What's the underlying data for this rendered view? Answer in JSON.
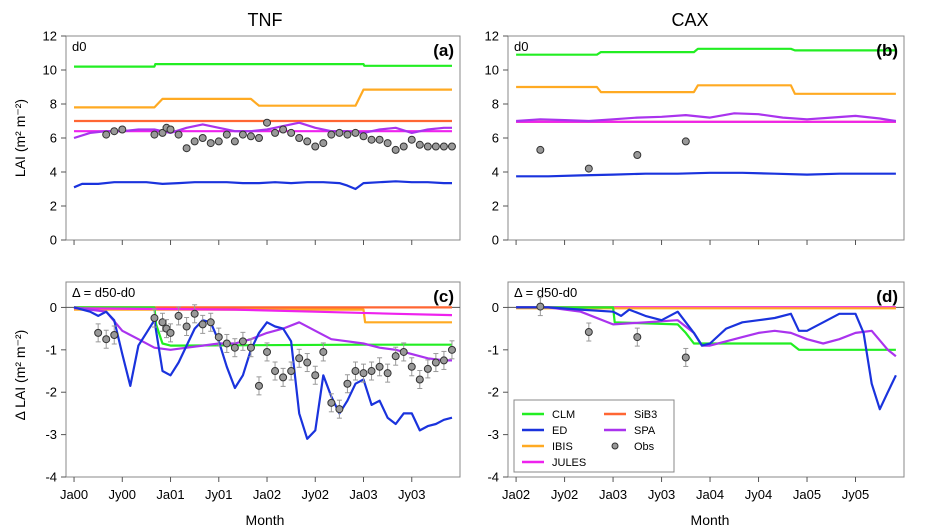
{
  "figure": {
    "columns": [
      "TNF",
      "CAX"
    ],
    "x_title": "Month",
    "y_title_top": "LAI (m² m⁻²)",
    "y_title_bottom": "Δ LAI (m² m⁻²)"
  },
  "legend": {
    "items": [
      {
        "label": "CLM",
        "color": "#22ee22",
        "kind": "line"
      },
      {
        "label": "SiB3",
        "color": "#ff6633",
        "kind": "line"
      },
      {
        "label": "ED",
        "color": "#1a33dd",
        "kind": "line"
      },
      {
        "label": "SPA",
        "color": "#aa33ee",
        "kind": "line"
      },
      {
        "label": "IBIS",
        "color": "#ffaa22",
        "kind": "line"
      },
      {
        "label": "Obs",
        "color": "#888888",
        "kind": "point"
      },
      {
        "label": "JULES",
        "color": "#ee22ee",
        "kind": "line"
      }
    ]
  },
  "chart_data": [
    {
      "type": "line",
      "panel": "(a)",
      "corner_label": "d0",
      "x_ticks": [
        "Ja00",
        "Jy00",
        "Ja01",
        "Jy01",
        "Ja02",
        "Jy02",
        "Ja03",
        "Jy03"
      ],
      "x_tick_pos": [
        0,
        6,
        12,
        18,
        24,
        30,
        36,
        42
      ],
      "xlim": [
        -1,
        48
      ],
      "ylim": [
        0,
        12
      ],
      "y_ticks": [
        0,
        2,
        4,
        6,
        8,
        10,
        12
      ],
      "series": [
        {
          "name": "CLM",
          "color": "#22ee22",
          "x": [
            0,
            10,
            10.1,
            36,
            36.1,
            47
          ],
          "y": [
            10.2,
            10.2,
            10.35,
            10.35,
            10.25,
            10.25
          ]
        },
        {
          "name": "IBIS",
          "color": "#ffaa22",
          "x": [
            0,
            10,
            11,
            22,
            23,
            35,
            36,
            47
          ],
          "y": [
            7.8,
            7.8,
            8.3,
            8.3,
            7.9,
            7.9,
            8.85,
            8.85
          ]
        },
        {
          "name": "SiB3",
          "color": "#ff6633",
          "x": [
            0,
            47
          ],
          "y": [
            7.0,
            7.0
          ]
        },
        {
          "name": "JULES",
          "color": "#ee22ee",
          "x": [
            0,
            47
          ],
          "y": [
            6.4,
            6.4
          ]
        },
        {
          "name": "SPA",
          "color": "#aa33ee",
          "x": [
            0,
            2,
            4,
            6,
            8,
            10,
            12,
            14,
            16,
            18,
            20,
            22,
            24,
            26,
            28,
            30,
            32,
            34,
            36,
            38,
            40,
            42,
            44,
            46,
            47
          ],
          "y": [
            6.0,
            6.3,
            6.4,
            6.4,
            6.5,
            6.5,
            6.3,
            6.6,
            6.8,
            6.6,
            6.4,
            6.4,
            6.5,
            6.7,
            6.9,
            6.6,
            6.4,
            6.4,
            6.3,
            6.5,
            6.6,
            6.3,
            6.5,
            6.6,
            6.6
          ]
        },
        {
          "name": "ED",
          "color": "#1a33dd",
          "x": [
            0,
            1,
            3,
            5,
            7,
            9,
            11,
            13,
            15,
            17,
            19,
            21,
            23,
            25,
            27,
            29,
            31,
            33,
            34,
            35,
            36,
            38,
            40,
            42,
            44,
            46,
            47
          ],
          "y": [
            3.1,
            3.3,
            3.3,
            3.4,
            3.4,
            3.4,
            3.3,
            3.35,
            3.4,
            3.4,
            3.4,
            3.35,
            3.35,
            3.4,
            3.35,
            3.4,
            3.4,
            3.35,
            3.2,
            3.0,
            3.35,
            3.4,
            3.45,
            3.4,
            3.4,
            3.35,
            3.35
          ]
        },
        {
          "name": "Obs",
          "color": "#888888",
          "kind": "points",
          "x": [
            4,
            5,
            6,
            10,
            11,
            11.5,
            12,
            13,
            14,
            15,
            16,
            17,
            18,
            19,
            20,
            21,
            22,
            23,
            24,
            25,
            26,
            27,
            28,
            29,
            30,
            31,
            32,
            33,
            34,
            35,
            36,
            37,
            38,
            39,
            40,
            41,
            42,
            43,
            44,
            45,
            46,
            47
          ],
          "y": [
            6.2,
            6.4,
            6.5,
            6.2,
            6.3,
            6.6,
            6.5,
            6.2,
            5.4,
            5.8,
            6.0,
            5.7,
            5.8,
            6.2,
            5.8,
            6.2,
            6.1,
            6.0,
            6.9,
            6.3,
            6.5,
            6.3,
            6.0,
            5.8,
            5.5,
            5.7,
            6.2,
            6.3,
            6.2,
            6.3,
            6.1,
            5.9,
            5.9,
            5.7,
            5.3,
            5.5,
            5.9,
            5.6,
            5.5,
            5.5,
            5.5,
            5.5
          ]
        }
      ]
    },
    {
      "type": "line",
      "panel": "(b)",
      "corner_label": "d0",
      "x_ticks": [
        "Ja02",
        "Jy02",
        "Ja03",
        "Jy03",
        "Ja04",
        "Jy04",
        "Ja05",
        "Jy05"
      ],
      "x_tick_pos": [
        0,
        6,
        12,
        18,
        24,
        30,
        36,
        42
      ],
      "xlim": [
        -1,
        48
      ],
      "ylim": [
        0,
        12
      ],
      "y_ticks": [
        0,
        2,
        4,
        6,
        8,
        10,
        12
      ],
      "series": [
        {
          "name": "CLM",
          "color": "#22ee22",
          "x": [
            0,
            10,
            10.5,
            22,
            22.5,
            34,
            34.5,
            47
          ],
          "y": [
            10.9,
            10.9,
            11.05,
            11.05,
            11.25,
            11.25,
            11.15,
            11.15
          ]
        },
        {
          "name": "IBIS",
          "color": "#ffaa22",
          "x": [
            0,
            10,
            10.5,
            22,
            22.5,
            34,
            34.5,
            47
          ],
          "y": [
            9.0,
            9.0,
            8.7,
            8.7,
            9.1,
            9.1,
            8.6,
            8.6
          ]
        },
        {
          "name": "SiB3",
          "color": "#ff6633",
          "x": [
            0,
            47
          ],
          "y": [
            6.95,
            6.95
          ]
        },
        {
          "name": "JULES",
          "color": "#ee22ee",
          "x": [
            0,
            47
          ],
          "y": [
            6.95,
            6.95
          ]
        },
        {
          "name": "SPA",
          "color": "#aa33ee",
          "x": [
            0,
            3,
            6,
            9,
            12,
            15,
            18,
            21,
            24,
            27,
            30,
            33,
            36,
            39,
            42,
            45,
            47
          ],
          "y": [
            7.0,
            7.1,
            7.05,
            7.0,
            7.1,
            7.2,
            7.25,
            7.35,
            7.2,
            7.45,
            7.4,
            7.2,
            7.1,
            7.2,
            7.3,
            7.15,
            7.0
          ]
        },
        {
          "name": "ED",
          "color": "#1a33dd",
          "x": [
            0,
            4,
            8,
            12,
            16,
            20,
            24,
            28,
            32,
            36,
            40,
            44,
            47
          ],
          "y": [
            3.75,
            3.75,
            3.8,
            3.85,
            3.9,
            3.9,
            3.95,
            3.95,
            3.9,
            3.85,
            3.9,
            3.9,
            3.9
          ]
        },
        {
          "name": "Obs",
          "color": "#888888",
          "kind": "points",
          "x": [
            3,
            9,
            15,
            21
          ],
          "y": [
            5.3,
            4.2,
            5.0,
            5.8
          ]
        }
      ]
    },
    {
      "type": "line",
      "panel": "(c)",
      "corner_label": "Δ = d50-d0",
      "x_ticks": [
        "Ja00",
        "Jy00",
        "Ja01",
        "Jy01",
        "Ja02",
        "Jy02",
        "Ja03",
        "Jy03"
      ],
      "x_tick_pos": [
        0,
        6,
        12,
        18,
        24,
        30,
        36,
        42
      ],
      "xlim": [
        -1,
        48
      ],
      "ylim": [
        -4,
        0.6
      ],
      "y_ticks": [
        -4,
        -3,
        -2,
        -1,
        0
      ],
      "series": [
        {
          "name": "SiB3",
          "color": "#ff6633",
          "x": [
            0,
            47
          ],
          "y": [
            0.0,
            0.0
          ]
        },
        {
          "name": "IBIS",
          "color": "#ffaa22",
          "x": [
            0,
            36,
            36.2,
            47
          ],
          "y": [
            -0.05,
            -0.05,
            -0.35,
            -0.35
          ]
        },
        {
          "name": "CLM",
          "color": "#22ee22",
          "x": [
            0,
            10,
            10.2,
            11,
            12,
            36,
            47
          ],
          "y": [
            0,
            0,
            -0.4,
            -0.85,
            -0.9,
            -0.88,
            -0.88
          ]
        },
        {
          "name": "JULES",
          "color": "#ee22ee",
          "x": [
            0,
            20,
            30,
            40,
            47
          ],
          "y": [
            -0.02,
            -0.05,
            -0.1,
            -0.15,
            -0.18
          ]
        },
        {
          "name": "SPA",
          "color": "#aa33ee",
          "x": [
            0,
            2,
            4,
            6,
            8,
            10,
            12,
            14,
            16,
            18,
            20,
            22,
            24,
            26,
            28,
            30,
            32,
            34,
            36,
            38,
            40,
            42,
            44,
            46,
            47
          ],
          "y": [
            0,
            -0.05,
            -0.1,
            -0.55,
            -0.75,
            -0.95,
            -1.0,
            -0.95,
            -0.9,
            -0.85,
            -0.85,
            -0.75,
            -0.6,
            -0.5,
            -0.35,
            -0.55,
            -0.75,
            -0.8,
            -0.85,
            -0.95,
            -1.0,
            -1.1,
            -1.2,
            -1.25,
            -1.25
          ]
        },
        {
          "name": "ED",
          "color": "#1a33dd",
          "x": [
            0,
            1,
            2,
            3,
            4,
            5,
            6,
            7,
            8,
            9,
            10,
            11,
            12,
            13,
            14,
            15,
            16,
            17,
            18,
            19,
            20,
            21,
            22,
            23,
            24,
            25,
            26,
            27,
            28,
            29,
            30,
            31,
            32,
            33,
            34,
            35,
            36,
            37,
            38,
            39,
            40,
            41,
            42,
            43,
            44,
            45,
            46,
            47
          ],
          "y": [
            0,
            -0.05,
            -0.1,
            -0.2,
            -0.1,
            -0.3,
            -1.1,
            -1.85,
            -0.9,
            -0.6,
            -0.3,
            -1.5,
            -1.6,
            -1.3,
            -0.9,
            -0.5,
            -0.3,
            -0.35,
            -0.8,
            -1.4,
            -1.9,
            -1.6,
            -1.0,
            -0.6,
            -0.35,
            -0.45,
            -0.5,
            -0.8,
            -2.5,
            -3.1,
            -2.9,
            -1.6,
            -2.1,
            -2.5,
            -2.2,
            -1.8,
            -1.7,
            -2.3,
            -2.2,
            -2.6,
            -2.75,
            -2.5,
            -2.5,
            -2.9,
            -2.8,
            -2.75,
            -2.65,
            -2.6
          ]
        },
        {
          "name": "Obs",
          "color": "#888888",
          "kind": "points",
          "x": [
            3,
            4,
            5,
            10,
            11,
            11.5,
            12,
            13,
            14,
            15,
            16,
            17,
            18,
            19,
            20,
            21,
            22,
            23,
            24,
            25,
            26,
            27,
            28,
            29,
            30,
            31,
            32,
            33,
            34,
            35,
            36,
            37,
            38,
            39,
            40,
            41,
            42,
            43,
            44,
            45,
            46,
            47
          ],
          "y": [
            -0.6,
            -0.75,
            -0.65,
            -0.25,
            -0.35,
            -0.5,
            -0.6,
            -0.2,
            -0.45,
            -0.15,
            -0.4,
            -0.35,
            -0.7,
            -0.85,
            -0.95,
            -0.8,
            -0.95,
            -1.85,
            -1.05,
            -1.5,
            -1.65,
            -1.5,
            -1.2,
            -1.3,
            -1.6,
            -1.05,
            -2.25,
            -2.4,
            -1.8,
            -1.5,
            -1.55,
            -1.5,
            -1.4,
            -1.55,
            -1.15,
            -1.05,
            -1.4,
            -1.7,
            -1.45,
            -1.3,
            -1.25,
            -1.0
          ]
        }
      ]
    },
    {
      "type": "line",
      "panel": "(d)",
      "corner_label": "Δ = d50-d0",
      "x_ticks": [
        "Ja02",
        "Jy02",
        "Ja03",
        "Jy03",
        "Ja04",
        "Jy04",
        "Ja05",
        "Jy05"
      ],
      "x_tick_pos": [
        0,
        6,
        12,
        18,
        24,
        30,
        36,
        42
      ],
      "xlim": [
        -1,
        48
      ],
      "ylim": [
        -4,
        0.6
      ],
      "y_ticks": [
        -4,
        -3,
        -2,
        -1,
        0
      ],
      "series": [
        {
          "name": "SiB3",
          "color": "#ff6633",
          "x": [
            0,
            47
          ],
          "y": [
            0.0,
            0.0
          ]
        },
        {
          "name": "JULES",
          "color": "#ee22ee",
          "x": [
            0,
            47
          ],
          "y": [
            0.0,
            0.0
          ]
        },
        {
          "name": "IBIS",
          "color": "#ffaa22",
          "x": [
            0,
            47
          ],
          "y": [
            -0.02,
            -0.02
          ]
        },
        {
          "name": "CLM",
          "color": "#22ee22",
          "x": [
            0,
            12,
            12.2,
            20,
            21,
            22,
            23,
            24,
            34,
            35,
            36,
            47
          ],
          "y": [
            0,
            0,
            -0.35,
            -0.4,
            -0.6,
            -0.85,
            -0.85,
            -0.85,
            -0.85,
            -1.0,
            -1.0,
            -1.0
          ]
        },
        {
          "name": "SPA",
          "color": "#aa33ee",
          "x": [
            0,
            4,
            8,
            12,
            16,
            20,
            22,
            23,
            24,
            26,
            28,
            30,
            32,
            34,
            36,
            38,
            40,
            42,
            44,
            46,
            47
          ],
          "y": [
            0,
            0,
            -0.1,
            -0.4,
            -0.35,
            -0.3,
            -0.6,
            -0.9,
            -0.9,
            -0.8,
            -0.7,
            -0.6,
            -0.55,
            -0.6,
            -0.75,
            -0.85,
            -0.75,
            -0.6,
            -0.55,
            -1.0,
            -1.15
          ]
        },
        {
          "name": "ED",
          "color": "#1a33dd",
          "x": [
            0,
            4,
            8,
            12,
            13,
            14,
            16,
            18,
            20,
            22,
            23,
            24,
            26,
            28,
            30,
            32,
            34,
            35,
            36,
            38,
            40,
            42,
            43,
            44,
            45,
            46,
            47
          ],
          "y": [
            0,
            0,
            -0.05,
            -0.1,
            -0.2,
            -0.05,
            -0.2,
            -0.3,
            -0.1,
            -0.6,
            -0.9,
            -0.85,
            -0.5,
            -0.35,
            -0.3,
            -0.25,
            -0.15,
            -0.55,
            -0.55,
            -0.35,
            -0.15,
            -0.15,
            -0.6,
            -1.8,
            -2.4,
            -2.0,
            -1.6
          ]
        },
        {
          "name": "Obs",
          "color": "#888888",
          "kind": "points",
          "x": [
            3,
            9,
            15,
            21
          ],
          "y": [
            0.02,
            -0.58,
            -0.7,
            -1.18
          ]
        }
      ]
    }
  ]
}
